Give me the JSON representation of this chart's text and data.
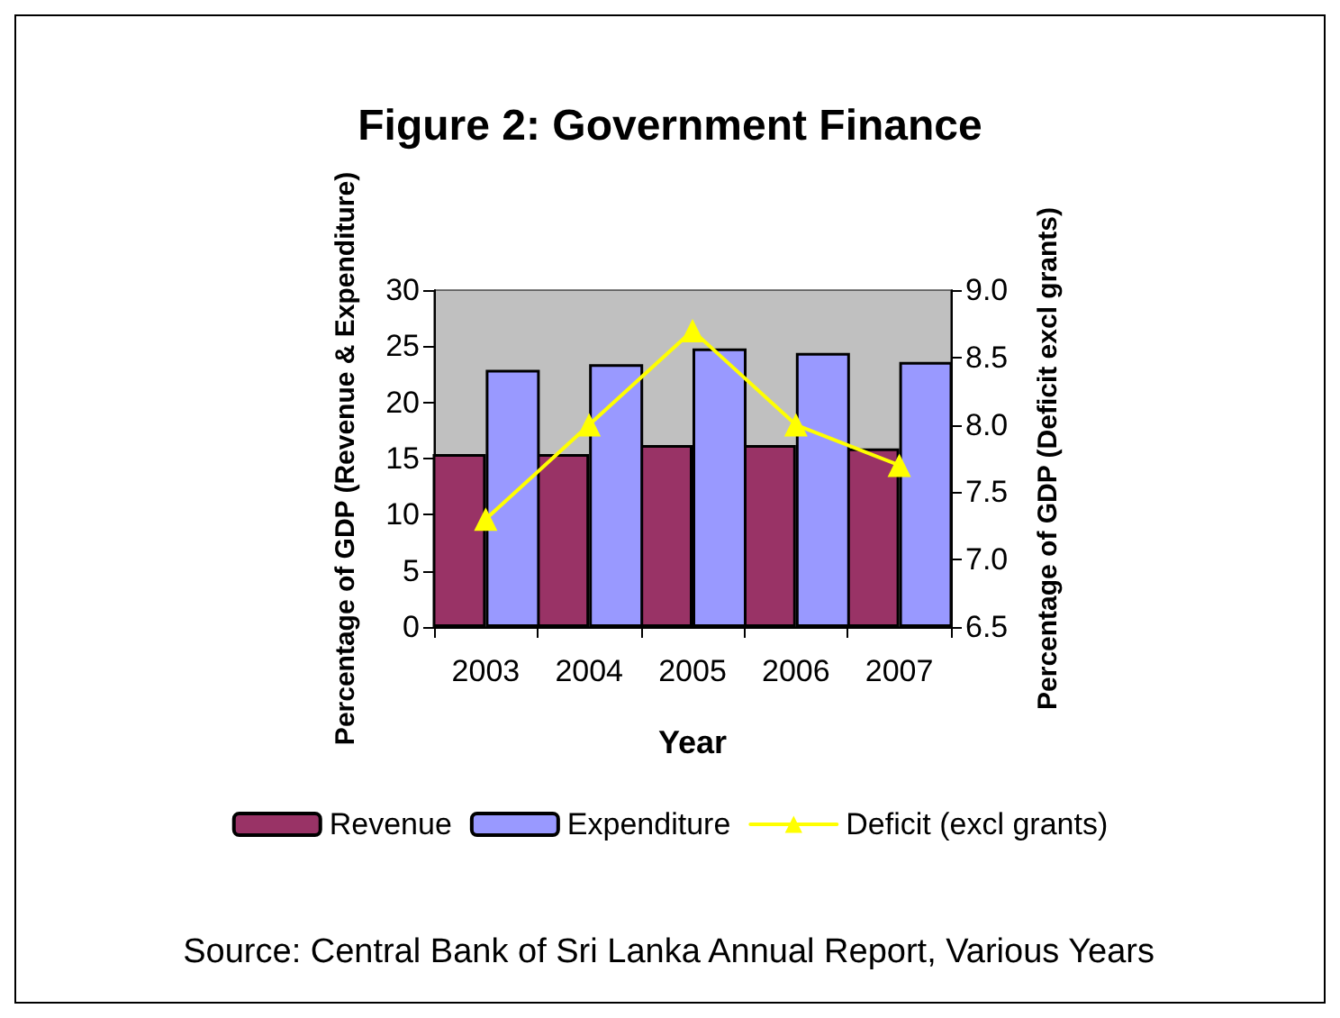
{
  "chart_data": {
    "type": "bar",
    "title": "Figure 2: Government Finance",
    "xlabel": "Year",
    "ylabel": "Percentage of GDP (Revenue & Expenditure)",
    "y2label": "Percentage of GDP (Deficit excl grants)",
    "categories": [
      "2003",
      "2004",
      "2005",
      "2006",
      "2007"
    ],
    "series": [
      {
        "name": "Revenue",
        "color": "#993366",
        "values": [
          15.4,
          15.4,
          16.2,
          16.2,
          15.9
        ]
      },
      {
        "name": "Expenditure",
        "color": "#9999ff",
        "values": [
          22.9,
          23.4,
          24.8,
          24.4,
          23.6
        ]
      },
      {
        "name": "Deficit (excl grants)",
        "type": "line",
        "axis": "y2",
        "color": "#ffff00",
        "values": [
          7.3,
          8.0,
          8.7,
          8.0,
          7.7
        ]
      }
    ],
    "ylim": [
      0,
      30
    ],
    "yticks": [
      0,
      5,
      10,
      15,
      20,
      25,
      30
    ],
    "y2lim": [
      6.5,
      9.0
    ],
    "y2ticks": [
      {
        "value": 6.5,
        "label": "6.5"
      },
      {
        "value": 7.0,
        "label": "7.0"
      },
      {
        "value": 7.5,
        "label": "7.5"
      },
      {
        "value": 8.0,
        "label": "8.0"
      },
      {
        "value": 8.5,
        "label": "8.5"
      },
      {
        "value": 9.0,
        "label": "9.0"
      }
    ],
    "grid": false,
    "legend": "bottom",
    "marker": "triangle",
    "line_style": "solid",
    "annotations": [
      "Source: Central Bank of Sri Lanka Annual Report, Various Years"
    ]
  }
}
